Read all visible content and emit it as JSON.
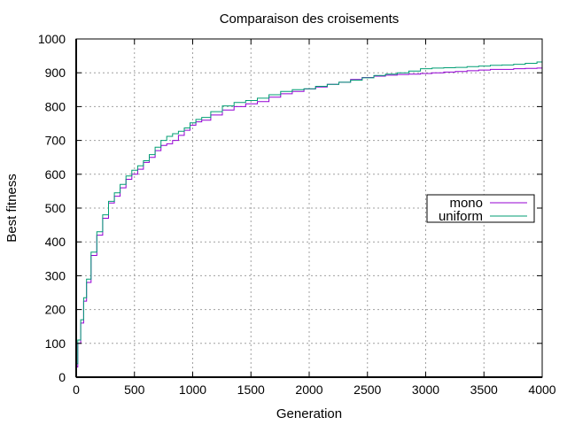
{
  "chart_data": {
    "type": "line",
    "title": "Comparaison des croisements",
    "xlabel": "Generation",
    "ylabel": "Best fitness",
    "xlim": [
      0,
      4000
    ],
    "ylim": [
      0,
      1000
    ],
    "xticks": [
      0,
      500,
      1000,
      1500,
      2000,
      2500,
      3000,
      3500,
      4000
    ],
    "yticks": [
      0,
      100,
      200,
      300,
      400,
      500,
      600,
      700,
      800,
      900,
      1000
    ],
    "grid": true,
    "legend_position": "right",
    "series": [
      {
        "name": "mono",
        "color": "#9400d3",
        "x": [
          0,
          25,
          50,
          75,
          100,
          150,
          200,
          250,
          300,
          350,
          400,
          450,
          500,
          550,
          600,
          650,
          700,
          750,
          800,
          850,
          900,
          950,
          1000,
          1050,
          1100,
          1200,
          1300,
          1400,
          1500,
          1600,
          1700,
          1800,
          1900,
          2000,
          2100,
          2200,
          2300,
          2400,
          2500,
          2600,
          2700,
          2800,
          2900,
          3000,
          3100,
          3200,
          3300,
          3400,
          3500,
          3600,
          3700,
          3800,
          3900,
          4000
        ],
        "y": [
          30,
          100,
          160,
          225,
          280,
          360,
          420,
          470,
          515,
          535,
          560,
          585,
          600,
          615,
          635,
          650,
          670,
          685,
          690,
          700,
          715,
          730,
          745,
          755,
          760,
          775,
          790,
          800,
          808,
          815,
          828,
          838,
          845,
          852,
          858,
          866,
          872,
          880,
          886,
          890,
          893,
          895,
          896,
          898,
          900,
          902,
          904,
          906,
          908,
          910,
          910,
          912,
          913,
          914
        ]
      },
      {
        "name": "uniform",
        "color": "#009e73",
        "x": [
          0,
          25,
          50,
          75,
          100,
          150,
          200,
          250,
          300,
          350,
          400,
          450,
          500,
          550,
          600,
          650,
          700,
          750,
          800,
          850,
          900,
          950,
          1000,
          1050,
          1100,
          1200,
          1300,
          1400,
          1500,
          1600,
          1700,
          1800,
          1900,
          2000,
          2100,
          2200,
          2300,
          2400,
          2500,
          2600,
          2700,
          2800,
          2900,
          3000,
          3100,
          3200,
          3300,
          3400,
          3500,
          3600,
          3700,
          3800,
          3900,
          4000
        ],
        "y": [
          40,
          110,
          170,
          235,
          290,
          370,
          430,
          480,
          520,
          545,
          570,
          595,
          612,
          625,
          640,
          658,
          680,
          700,
          712,
          720,
          727,
          737,
          752,
          762,
          768,
          785,
          802,
          812,
          818,
          825,
          835,
          845,
          850,
          853,
          860,
          866,
          872,
          878,
          885,
          892,
          896,
          900,
          905,
          912,
          914,
          915,
          916,
          918,
          920,
          922,
          923,
          925,
          928,
          932
        ]
      }
    ]
  }
}
